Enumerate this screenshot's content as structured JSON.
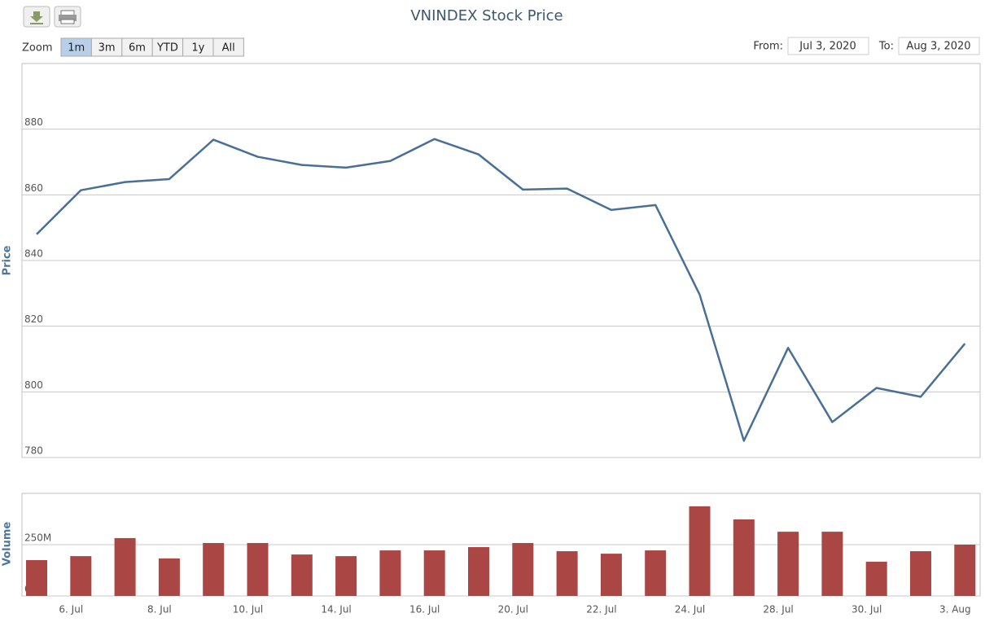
{
  "ui": {
    "zoom_label": "Zoom",
    "buttons": [
      "1m",
      "3m",
      "6m",
      "YTD",
      "1y",
      "All"
    ],
    "from_label": "From:",
    "from": "Jul 3, 2020",
    "to_label": "To:",
    "to": "Aug 3, 2020"
  },
  "chart_data": [
    {
      "type": "line",
      "title": "VNINDEX Stock Price",
      "ylabel": "Price",
      "series": [
        {
          "name": "VNINDEX",
          "color": "#4a6f96",
          "values": [
            848.0,
            861.4,
            863.9,
            864.8,
            876.8,
            871.6,
            869.1,
            868.3,
            870.3,
            877.0,
            872.3,
            861.6,
            861.9,
            855.4,
            856.9,
            829.6,
            785.1,
            813.4,
            790.8,
            801.2,
            798.5,
            814.7
          ]
        }
      ],
      "ylim": [
        780,
        900
      ],
      "yticks": [
        780,
        800,
        820,
        840,
        860,
        880
      ],
      "grid": true
    },
    {
      "type": "bar",
      "ylabel": "Volume",
      "categories": [
        null,
        "6. Jul",
        null,
        "8. Jul",
        null,
        "10. Jul",
        null,
        "14. Jul",
        null,
        "16. Jul",
        null,
        "20. Jul",
        null,
        "22. Jul",
        null,
        "24. Jul",
        null,
        "28. Jul",
        null,
        "30. Jul",
        null,
        "3. Aug"
      ],
      "series": [
        {
          "name": "Volume",
          "color": "#aa4643",
          "values": [
            174600000,
            194000000,
            282000000,
            183000000,
            258000000,
            258000000,
            202000000,
            194000000,
            222000000,
            222000000,
            238000000,
            258000000,
            218000000,
            206000000,
            222000000,
            437000000,
            373000000,
            313000000,
            313000000,
            167000000,
            218000000,
            250000000
          ]
        }
      ],
      "ylim": [
        0,
        500000000
      ],
      "yticks": [
        {
          "value": 0,
          "label": "0M"
        },
        {
          "value": 250000000,
          "label": "250M"
        }
      ],
      "grid": true
    }
  ]
}
